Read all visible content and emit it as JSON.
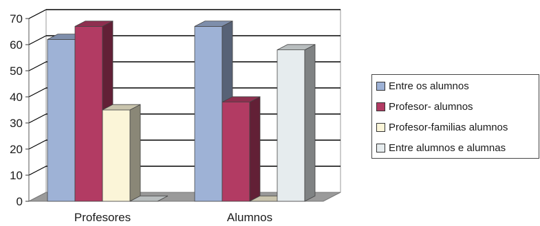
{
  "chart_data": {
    "type": "bar",
    "categories": [
      "Profesores",
      "Alumnos"
    ],
    "series": [
      {
        "name": "Entre os alumnos",
        "values": [
          62,
          67
        ],
        "color": "#9eb2d6"
      },
      {
        "name": "Profesor- alumnos",
        "values": [
          67,
          38
        ],
        "color": "#b23b63"
      },
      {
        "name": "Profesor-familias alumnos",
        "values": [
          35,
          0
        ],
        "color": "#fbf5d8"
      },
      {
        "name": "Entre alumnos e alumnas",
        "values": [
          0,
          58
        ],
        "color": "#e6ecee"
      }
    ],
    "title": "",
    "xlabel": "",
    "ylabel": "",
    "ylim": [
      0,
      70
    ],
    "yticks": [
      "0",
      "10",
      "20",
      "30",
      "40",
      "50",
      "60",
      "70"
    ],
    "grid": true,
    "three_d": true,
    "legend_position": "right"
  }
}
